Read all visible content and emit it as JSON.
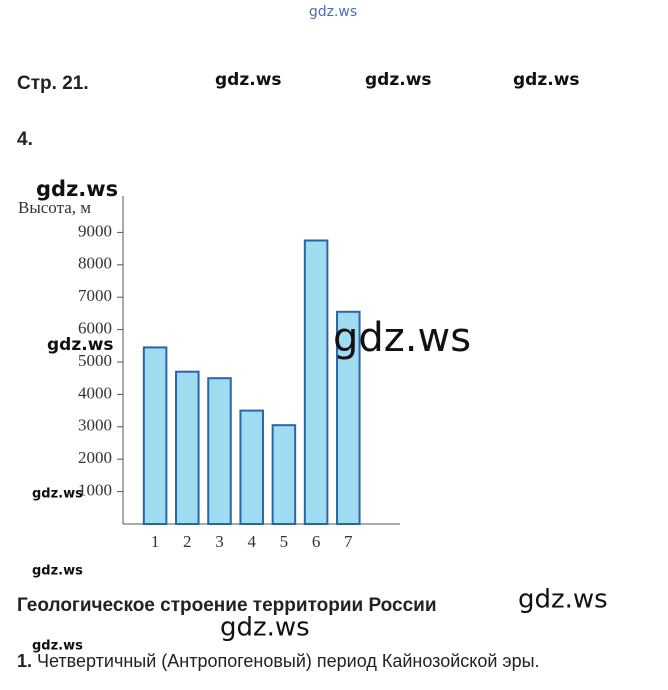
{
  "header": {
    "page": "Стр. 21.",
    "task": "4."
  },
  "watermarks": [
    "gdz.ws",
    "gdz.ws",
    "gdz.ws",
    "gdz.ws",
    "gdz.ws",
    "gdz.ws",
    "gdz.ws",
    "gdz.ws",
    "gdz.ws",
    "gdz.ws",
    "gdz.ws",
    "gdz.ws"
  ],
  "chart_data": {
    "type": "bar",
    "y_label": "Высота, м",
    "categories": [
      "1",
      "2",
      "3",
      "4",
      "5",
      "6",
      "7"
    ],
    "values": [
      5450,
      4700,
      4500,
      3500,
      3050,
      8750,
      6550
    ],
    "color": "#9fdcef",
    "ylim": [
      0,
      10000
    ],
    "yticks": [
      1000,
      2000,
      3000,
      4000,
      5000,
      6000,
      7000,
      8000,
      9000
    ]
  },
  "section": {
    "title": "Геологическое строение территории России",
    "items": [
      {
        "number": "1.",
        "text": "Четвертичный (Антропогеновый) период Кайнозойской эры."
      }
    ]
  }
}
